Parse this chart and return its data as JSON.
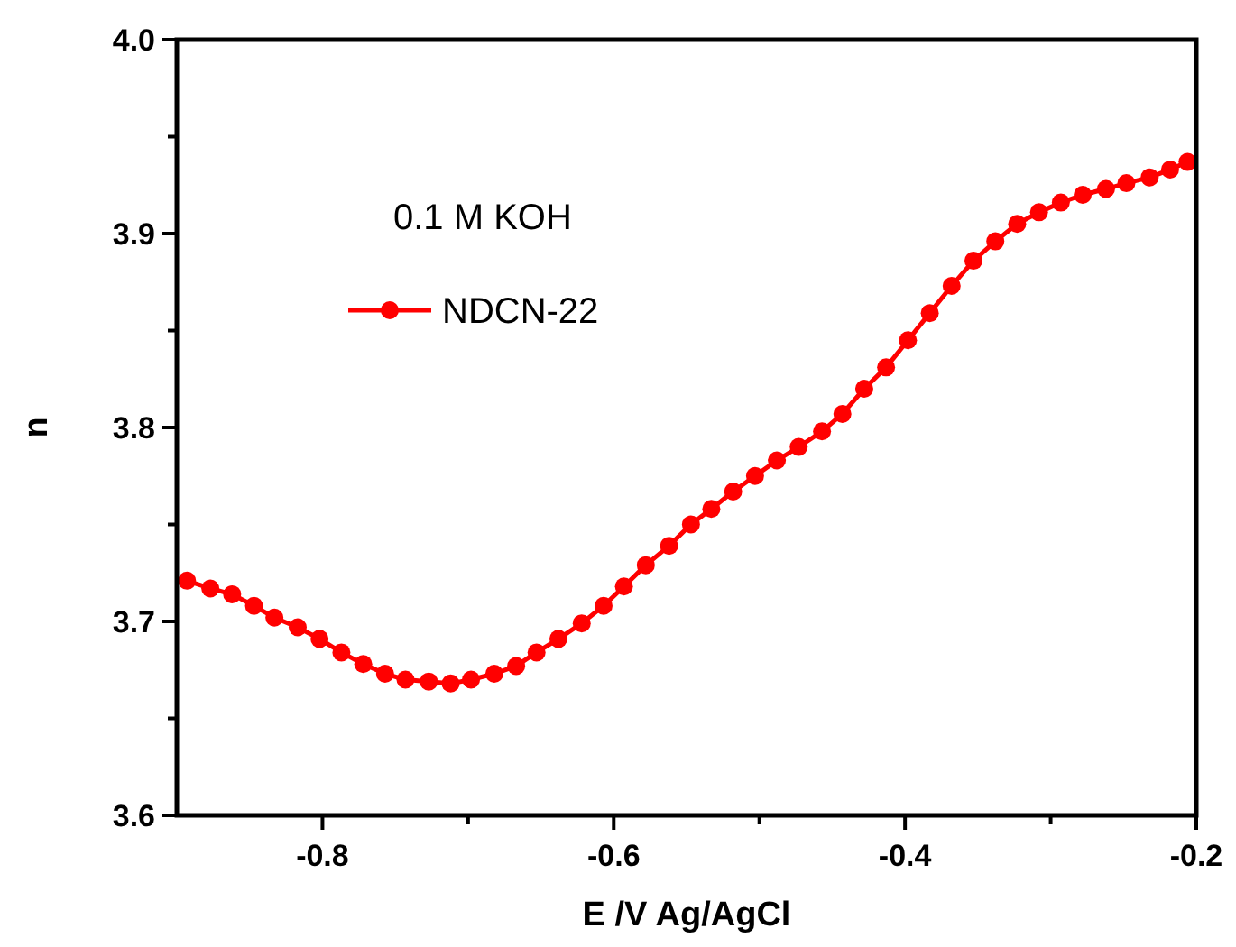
{
  "chart_data": {
    "type": "line",
    "xlabel": "E /V Ag/AgCl",
    "ylabel": "n",
    "annotations": [
      "0.1 M KOH"
    ],
    "xlim": [
      -0.9,
      -0.2
    ],
    "ylim": [
      3.6,
      4.0
    ],
    "xticks": [
      -0.8,
      {
        "value": -0.7,
        "label": null
      },
      -0.6,
      {
        "value": -0.5,
        "label": null
      },
      -0.4,
      {
        "value": -0.3,
        "label": null
      },
      -0.2
    ],
    "yticks": [
      3.6,
      {
        "value": 3.65,
        "label": null
      },
      3.7,
      {
        "value": 3.75,
        "label": null
      },
      3.8,
      {
        "value": 3.85,
        "label": null
      },
      3.9,
      {
        "value": 3.95,
        "label": null
      },
      {
        "value": 4.0,
        "label": "4.0"
      }
    ],
    "grid": false,
    "legend": "top left",
    "marker": "circle",
    "line_style": "solid",
    "series": [
      {
        "name": "NDCN-22",
        "color": "#ff0000",
        "x": [
          -0.893,
          -0.877,
          -0.862,
          -0.847,
          -0.833,
          -0.817,
          -0.802,
          -0.787,
          -0.772,
          -0.757,
          -0.743,
          -0.727,
          -0.712,
          -0.698,
          -0.682,
          -0.667,
          -0.653,
          -0.638,
          -0.622,
          -0.607,
          -0.593,
          -0.578,
          -0.562,
          -0.547,
          -0.533,
          -0.518,
          -0.503,
          -0.488,
          -0.473,
          -0.457,
          -0.443,
          -0.428,
          -0.413,
          -0.398,
          -0.383,
          -0.368,
          -0.353,
          -0.338,
          -0.323,
          -0.308,
          -0.293,
          -0.278,
          -0.262,
          -0.248,
          -0.232,
          -0.218,
          -0.206
        ],
        "values": [
          3.721,
          3.717,
          3.714,
          3.708,
          3.702,
          3.697,
          3.691,
          3.684,
          3.678,
          3.673,
          3.67,
          3.669,
          3.668,
          3.67,
          3.673,
          3.677,
          3.684,
          3.691,
          3.699,
          3.708,
          3.718,
          3.729,
          3.739,
          3.75,
          3.758,
          3.767,
          3.775,
          3.783,
          3.79,
          3.798,
          3.807,
          3.82,
          3.831,
          3.845,
          3.859,
          3.873,
          3.886,
          3.896,
          3.905,
          3.911,
          3.916,
          3.92,
          3.923,
          3.926,
          3.929,
          3.933,
          3.937
        ]
      }
    ]
  }
}
